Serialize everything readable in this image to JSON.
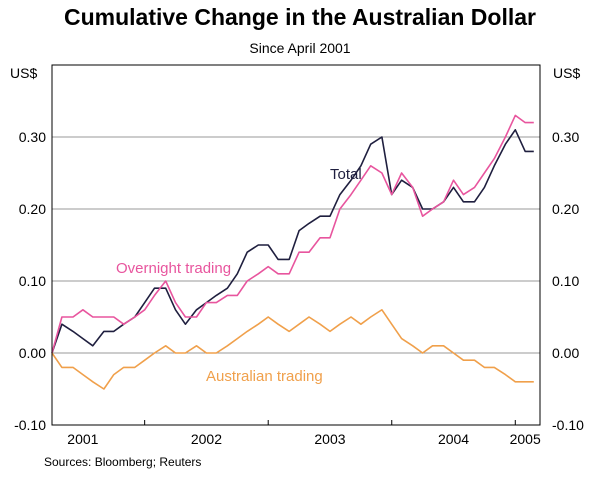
{
  "chart_data": {
    "type": "line",
    "title": "Cumulative Change in the Australian Dollar",
    "subtitle": "Since April 2001",
    "ylabel_left": "US$",
    "ylabel_right": "US$",
    "source": "Sources: Bloomberg; Reuters",
    "ylim": [
      -0.1,
      0.4
    ],
    "yticks": [
      -0.1,
      0.0,
      0.1,
      0.2,
      0.3
    ],
    "ytick_labels": [
      "-0.10",
      "0.00",
      "0.10",
      "0.20",
      "0.30"
    ],
    "xlim": [
      2001.25,
      2005.2
    ],
    "x_labels": [
      "2001",
      "2002",
      "2003",
      "2004",
      "2005"
    ],
    "x_label_positions": [
      2001.5,
      2002.5,
      2003.5,
      2004.5,
      2005.08
    ],
    "x_tick_positions": [
      2002.0,
      2003.0,
      2004.0,
      2005.0
    ],
    "annotations": [
      {
        "text": "Total",
        "series": "Total"
      },
      {
        "text": "Overnight trading",
        "series": "Overnight trading"
      },
      {
        "text": "Australian trading",
        "series": "Australian trading"
      }
    ],
    "series": [
      {
        "name": "Total",
        "color": "#1f1f3f",
        "x": [
          2001.25,
          2001.33,
          2001.42,
          2001.5,
          2001.58,
          2001.67,
          2001.75,
          2001.83,
          2001.92,
          2002.0,
          2002.08,
          2002.17,
          2002.25,
          2002.33,
          2002.42,
          2002.5,
          2002.58,
          2002.67,
          2002.75,
          2002.83,
          2002.92,
          2003.0,
          2003.08,
          2003.17,
          2003.25,
          2003.33,
          2003.42,
          2003.5,
          2003.58,
          2003.67,
          2003.75,
          2003.83,
          2003.92,
          2004.0,
          2004.08,
          2004.17,
          2004.25,
          2004.33,
          2004.42,
          2004.5,
          2004.58,
          2004.67,
          2004.75,
          2004.83,
          2004.92,
          2005.0,
          2005.08,
          2005.15
        ],
        "values": [
          0.0,
          0.04,
          0.03,
          0.02,
          0.01,
          0.03,
          0.03,
          0.04,
          0.05,
          0.07,
          0.09,
          0.09,
          0.06,
          0.04,
          0.06,
          0.07,
          0.08,
          0.09,
          0.11,
          0.14,
          0.15,
          0.15,
          0.13,
          0.13,
          0.17,
          0.18,
          0.19,
          0.19,
          0.22,
          0.24,
          0.26,
          0.29,
          0.3,
          0.22,
          0.24,
          0.23,
          0.2,
          0.2,
          0.21,
          0.23,
          0.21,
          0.21,
          0.23,
          0.26,
          0.29,
          0.31,
          0.28,
          0.28
        ]
      },
      {
        "name": "Overnight trading",
        "color": "#e8559e",
        "x": [
          2001.25,
          2001.33,
          2001.42,
          2001.5,
          2001.58,
          2001.67,
          2001.75,
          2001.83,
          2001.92,
          2002.0,
          2002.08,
          2002.17,
          2002.25,
          2002.33,
          2002.42,
          2002.5,
          2002.58,
          2002.67,
          2002.75,
          2002.83,
          2002.92,
          2003.0,
          2003.08,
          2003.17,
          2003.25,
          2003.33,
          2003.42,
          2003.5,
          2003.58,
          2003.67,
          2003.75,
          2003.83,
          2003.92,
          2004.0,
          2004.08,
          2004.17,
          2004.25,
          2004.33,
          2004.42,
          2004.5,
          2004.58,
          2004.67,
          2004.75,
          2004.83,
          2004.92,
          2005.0,
          2005.08,
          2005.15
        ],
        "values": [
          0.0,
          0.05,
          0.05,
          0.06,
          0.05,
          0.05,
          0.05,
          0.04,
          0.05,
          0.06,
          0.08,
          0.1,
          0.07,
          0.05,
          0.05,
          0.07,
          0.07,
          0.08,
          0.08,
          0.1,
          0.11,
          0.12,
          0.11,
          0.11,
          0.14,
          0.14,
          0.16,
          0.16,
          0.2,
          0.22,
          0.24,
          0.26,
          0.25,
          0.22,
          0.25,
          0.23,
          0.19,
          0.2,
          0.21,
          0.24,
          0.22,
          0.23,
          0.25,
          0.27,
          0.3,
          0.33,
          0.32,
          0.32
        ]
      },
      {
        "name": "Australian trading",
        "color": "#f0a04b",
        "x": [
          2001.25,
          2001.33,
          2001.42,
          2001.5,
          2001.58,
          2001.67,
          2001.75,
          2001.83,
          2001.92,
          2002.0,
          2002.08,
          2002.17,
          2002.25,
          2002.33,
          2002.42,
          2002.5,
          2002.58,
          2002.67,
          2002.75,
          2002.83,
          2002.92,
          2003.0,
          2003.08,
          2003.17,
          2003.25,
          2003.33,
          2003.42,
          2003.5,
          2003.58,
          2003.67,
          2003.75,
          2003.83,
          2003.92,
          2004.0,
          2004.08,
          2004.17,
          2004.25,
          2004.33,
          2004.42,
          2004.5,
          2004.58,
          2004.67,
          2004.75,
          2004.83,
          2004.92,
          2005.0,
          2005.08,
          2005.15
        ],
        "values": [
          0.0,
          -0.02,
          -0.02,
          -0.03,
          -0.04,
          -0.05,
          -0.03,
          -0.02,
          -0.02,
          -0.01,
          0.0,
          0.01,
          0.0,
          0.0,
          0.01,
          0.0,
          0.0,
          0.01,
          0.02,
          0.03,
          0.04,
          0.05,
          0.04,
          0.03,
          0.04,
          0.05,
          0.04,
          0.03,
          0.04,
          0.05,
          0.04,
          0.05,
          0.06,
          0.04,
          0.02,
          0.01,
          0.0,
          0.01,
          0.01,
          0.0,
          -0.01,
          -0.01,
          -0.02,
          -0.02,
          -0.03,
          -0.04,
          -0.04,
          -0.04
        ]
      }
    ]
  }
}
